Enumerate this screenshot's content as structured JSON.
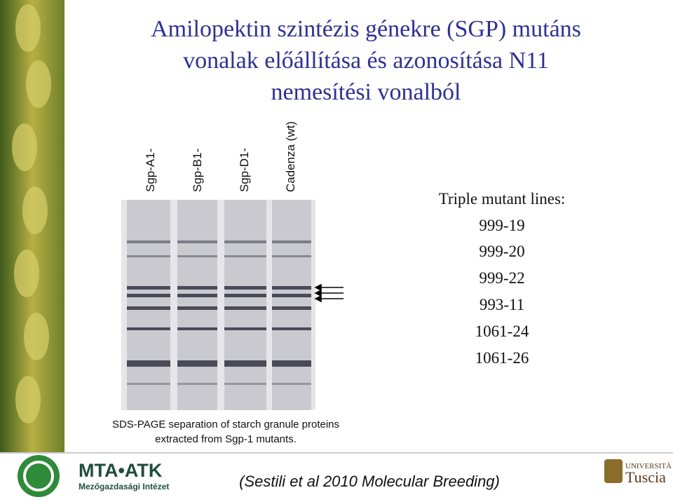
{
  "header": {
    "title_lines": [
      "Amilopektin szintézis génekre (SGP) mutáns",
      "vonalak előállítása és azonosítása N11",
      "nemesítési vonalból"
    ]
  },
  "gel": {
    "lanes": [
      "Sgp-A1-",
      "Sgp-B1-",
      "Sgp-D1-",
      "Cadenza (wt)"
    ],
    "caption_lines": [
      "SDS-PAGE separation of starch granule proteins",
      "extracted from Sgp-1 mutants."
    ]
  },
  "mutants": {
    "heading": "Triple mutant lines:",
    "lines": [
      "999-19",
      "999-20",
      "999-22",
      "993-11",
      "1061-24",
      "1061-26"
    ]
  },
  "footer": {
    "logo_left": "MTA•ATK",
    "logo_left_sub": "Mezőgazdasági Intézet",
    "citation": "(Sestili et al 2010 Molecular Breeding)",
    "logo_right_top": "UNIVERSITÀ",
    "logo_right_bottom": "Tuscia"
  }
}
